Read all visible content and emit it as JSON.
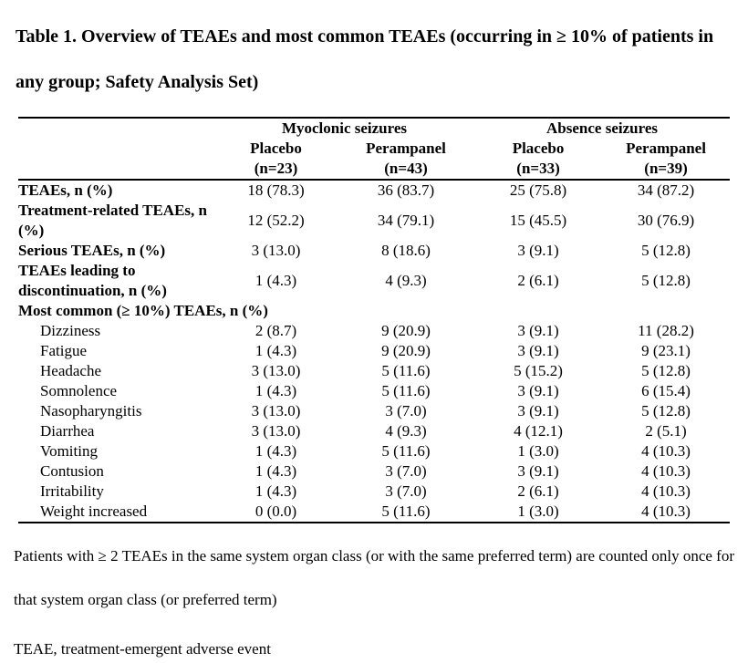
{
  "title": "Table 1. Overview of TEAEs and most common TEAEs (occurring in ≥ 10% of patients in any group; Safety Analysis Set)",
  "table": {
    "group_headers": [
      {
        "label": "Myoclonic seizures"
      },
      {
        "label": "Absence seizures"
      }
    ],
    "col_headers": [
      {
        "drug": "Placebo",
        "n": "(n=23)"
      },
      {
        "drug": "Perampanel",
        "n": "(n=43)"
      },
      {
        "drug": "Placebo",
        "n": "(n=33)"
      },
      {
        "drug": "Perampanel",
        "n": "(n=39)"
      }
    ],
    "rows": [
      {
        "label": "TEAEs, n (%)",
        "bold": true,
        "indent": false,
        "values": [
          "18 (78.3)",
          "36 (83.7)",
          "25 (75.8)",
          "34 (87.2)"
        ]
      },
      {
        "label": "Treatment-related TEAEs, n (%)",
        "bold": true,
        "indent": false,
        "values": [
          "12 (52.2)",
          "34 (79.1)",
          "15 (45.5)",
          "30 (76.9)"
        ]
      },
      {
        "label": "Serious TEAEs, n (%)",
        "bold": true,
        "indent": false,
        "values": [
          "3 (13.0)",
          "8 (18.6)",
          "3 (9.1)",
          "5 (12.8)"
        ]
      },
      {
        "label": "TEAEs leading to discontinuation, n (%)",
        "bold": true,
        "indent": false,
        "values": [
          "1 (4.3)",
          "4 (9.3)",
          "2 (6.1)",
          "5 (12.8)"
        ]
      },
      {
        "label": "Most common (≥ 10%) TEAEs, n (%)",
        "bold": true,
        "section": true
      },
      {
        "label": "Dizziness",
        "bold": false,
        "indent": true,
        "values": [
          "2 (8.7)",
          "9 (20.9)",
          "3 (9.1)",
          "11 (28.2)"
        ]
      },
      {
        "label": "Fatigue",
        "bold": false,
        "indent": true,
        "values": [
          "1 (4.3)",
          "9 (20.9)",
          "3 (9.1)",
          "9 (23.1)"
        ]
      },
      {
        "label": "Headache",
        "bold": false,
        "indent": true,
        "values": [
          "3 (13.0)",
          "5 (11.6)",
          "5 (15.2)",
          "5 (12.8)"
        ]
      },
      {
        "label": "Somnolence",
        "bold": false,
        "indent": true,
        "values": [
          "1 (4.3)",
          "5 (11.6)",
          "3 (9.1)",
          "6 (15.4)"
        ]
      },
      {
        "label": "Nasopharyngitis",
        "bold": false,
        "indent": true,
        "values": [
          "3 (13.0)",
          "3 (7.0)",
          "3 (9.1)",
          "5 (12.8)"
        ]
      },
      {
        "label": "Diarrhea",
        "bold": false,
        "indent": true,
        "values": [
          "3 (13.0)",
          "4 (9.3)",
          "4 (12.1)",
          "2 (5.1)"
        ]
      },
      {
        "label": "Vomiting",
        "bold": false,
        "indent": true,
        "values": [
          "1 (4.3)",
          "5 (11.6)",
          "1 (3.0)",
          "4 (10.3)"
        ]
      },
      {
        "label": "Contusion",
        "bold": false,
        "indent": true,
        "values": [
          "1 (4.3)",
          "3 (7.0)",
          "3 (9.1)",
          "4 (10.3)"
        ]
      },
      {
        "label": "Irritability",
        "bold": false,
        "indent": true,
        "values": [
          "1 (4.3)",
          "3 (7.0)",
          "2 (6.1)",
          "4 (10.3)"
        ]
      },
      {
        "label": "Weight increased",
        "bold": false,
        "indent": true,
        "values": [
          "0 (0.0)",
          "5 (11.6)",
          "1 (3.0)",
          "4 (10.3)"
        ]
      }
    ]
  },
  "footnotes": [
    "Patients with ≥ 2 TEAEs in the same system organ class (or with the same preferred term) are counted only once for that system organ class (or preferred term)",
    "TEAE, treatment-emergent adverse event"
  ],
  "colors": {
    "text": "#000000",
    "background": "#ffffff",
    "rule": "#000000"
  }
}
